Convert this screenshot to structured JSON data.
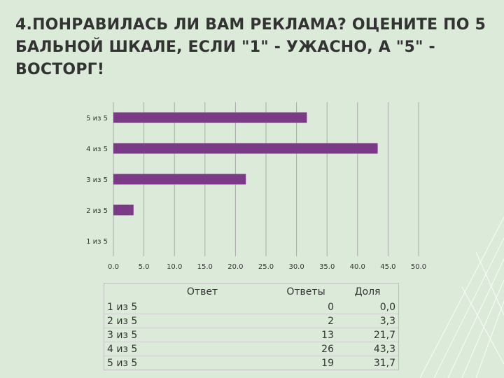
{
  "title": "4.Понравилась ли вам реклама? Оцените по 5 бальной шкале, если \"1\" - ужасно, а \"5\" - восторг!",
  "colors": {
    "bar": "#7b3a86",
    "background": "#dcebd9",
    "grid": "#a9a9a9"
  },
  "chart_data": {
    "type": "bar",
    "orientation": "horizontal",
    "categories": [
      "5 из 5",
      "4 из 5",
      "3 из 5",
      "2 из 5",
      "1 из 5"
    ],
    "values": [
      31.7,
      43.3,
      21.7,
      3.3,
      0
    ],
    "xlim": [
      0,
      50
    ],
    "xticks": [
      "0.0",
      "5.0",
      "10.0",
      "15.0",
      "20.0",
      "25.0",
      "30.0",
      "35.0",
      "40.0",
      "45.0",
      "50.0"
    ],
    "grid": true,
    "legend": "none"
  },
  "table": {
    "headers": [
      "Ответ",
      "Ответы",
      "Доля"
    ],
    "rows": [
      [
        "1 из 5",
        "0",
        "0,0"
      ],
      [
        "2 из 5",
        "2",
        "3,3"
      ],
      [
        "3 из 5",
        "13",
        "21,7"
      ],
      [
        "4 из 5",
        "26",
        "43,3"
      ],
      [
        "5 из 5",
        "19",
        "31,7"
      ]
    ]
  }
}
